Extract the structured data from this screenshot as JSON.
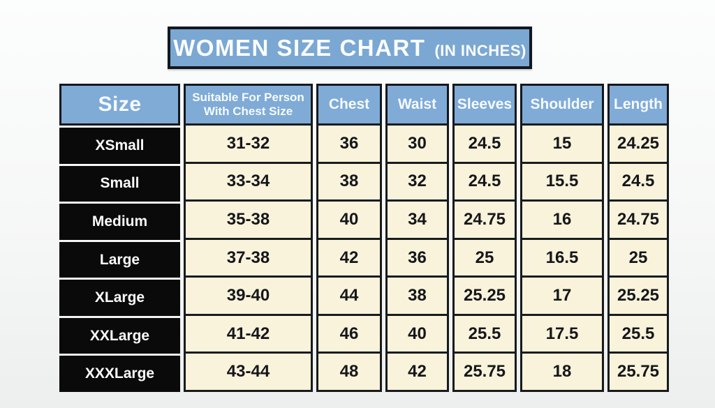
{
  "title": {
    "main": "WOMEN SIZE CHART",
    "suffix": "(IN INCHES)"
  },
  "chart_data": {
    "type": "table",
    "title": "WOMEN SIZE CHART (IN INCHES)",
    "units": "inches",
    "columns": [
      "Size",
      "Suitable For Person With Chest Size",
      "Chest",
      "Waist",
      "Sleeves",
      "Shoulder",
      "Length"
    ],
    "rows": [
      [
        "XSmall",
        "31-32",
        "36",
        "30",
        "24.5",
        "15",
        "24.25"
      ],
      [
        "Small",
        "33-34",
        "38",
        "32",
        "24.5",
        "15.5",
        "24.5"
      ],
      [
        "Medium",
        "35-38",
        "40",
        "34",
        "24.75",
        "16",
        "24.75"
      ],
      [
        "Large",
        "37-38",
        "42",
        "36",
        "25",
        "16.5",
        "25"
      ],
      [
        "XLarge",
        "39-40",
        "44",
        "38",
        "25.25",
        "17",
        "25.25"
      ],
      [
        "XXLarge",
        "41-42",
        "46",
        "40",
        "25.5",
        "17.5",
        "25.5"
      ],
      [
        "XXXLarge",
        "43-44",
        "48",
        "42",
        "25.75",
        "18",
        "25.75"
      ]
    ]
  },
  "colors": {
    "banner_blue": "#7BA7D3",
    "header_blue": "#7FABD6",
    "cell_cream": "#F8F3DA",
    "size_cell_black": "#0A0A0B",
    "border_black": "#14181D",
    "text_white": "#FBFDFE",
    "text_dark": "#16161A"
  }
}
